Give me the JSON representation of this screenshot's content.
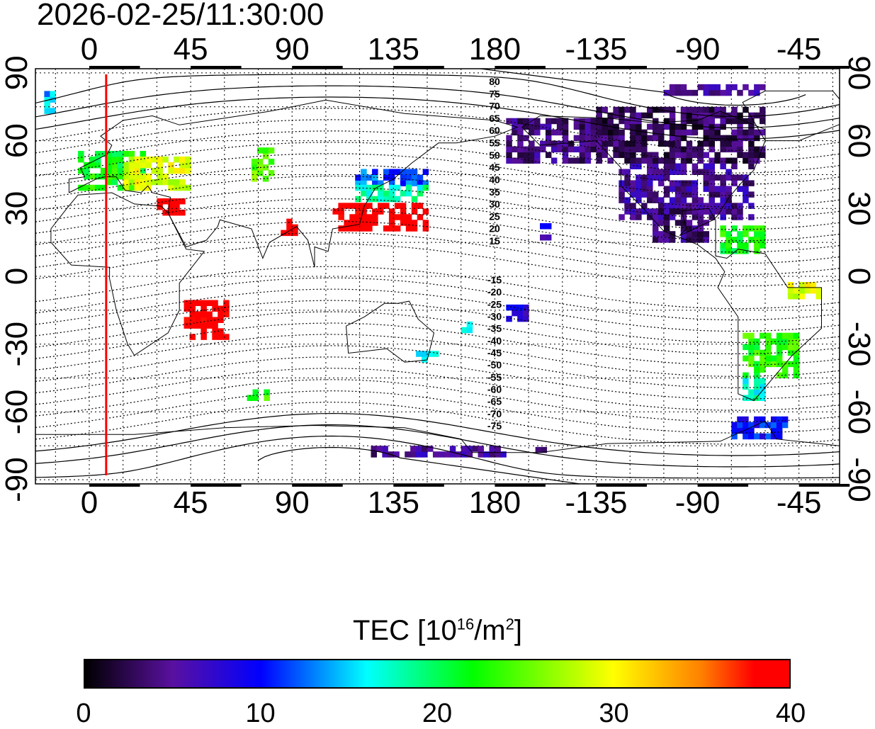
{
  "title": "2026-02-25/11:30:00",
  "axes": {
    "lon_ticks": [
      "0",
      "45",
      "90",
      "135",
      "180",
      "-135",
      "-90",
      "-45"
    ],
    "lat_ticks": [
      "90",
      "60",
      "30",
      "0",
      "-30",
      "-60",
      "-90"
    ]
  },
  "mag_lat_labels": [
    "80",
    "75",
    "70",
    "65",
    "60",
    "55",
    "50",
    "45",
    "40",
    "35",
    "30",
    "25",
    "20",
    "15",
    "-15",
    "-20",
    "-25",
    "-30",
    "-35",
    "-40",
    "-45",
    "-50",
    "-55",
    "-60",
    "-65",
    "-70",
    "-75"
  ],
  "terminator_lon": 7.5,
  "colorbar": {
    "label_prefix": "TEC  [10",
    "label_exp": "16",
    "label_mid": "/m",
    "label_exp2": "2",
    "label_suffix": "]",
    "ticks": [
      "0",
      "10",
      "20",
      "30",
      "40"
    ],
    "range": [
      0,
      40
    ],
    "stops": [
      [
        "0",
        "#000000"
      ],
      [
        "5",
        "#5a10a0"
      ],
      [
        "10",
        "#0000ff"
      ],
      [
        "16",
        "#00ffff"
      ],
      [
        "22",
        "#00ff00"
      ],
      [
        "30",
        "#ffff00"
      ],
      [
        "35",
        "#ff8000"
      ],
      [
        "38",
        "#ff0000"
      ],
      [
        "40",
        "#ff0000"
      ]
    ]
  },
  "tec_regions": [
    {
      "lon": [
        -5,
        25
      ],
      "lat": [
        38,
        55
      ],
      "tec": 22
    },
    {
      "lon": [
        15,
        45
      ],
      "lat": [
        38,
        52
      ],
      "tec": 29
    },
    {
      "lon": [
        30,
        42
      ],
      "lat": [
        27,
        34
      ],
      "tec": 40
    },
    {
      "lon": [
        72,
        80
      ],
      "lat": [
        42,
        55
      ],
      "tec": 25
    },
    {
      "lon": [
        118,
        150
      ],
      "lat": [
        40,
        47
      ],
      "tec": 12
    },
    {
      "lon": [
        118,
        150
      ],
      "lat": [
        33,
        40
      ],
      "tec": 18
    },
    {
      "lon": [
        108,
        150
      ],
      "lat": [
        20,
        32
      ],
      "tec": 40
    },
    {
      "lon": [
        85,
        92
      ],
      "lat": [
        18,
        24
      ],
      "tec": 40
    },
    {
      "lon": [
        42,
        62
      ],
      "lat": [
        -28,
        -12
      ],
      "tec": 40
    },
    {
      "lon": [
        145,
        155
      ],
      "lat": [
        -38,
        -34
      ],
      "tec": 16
    },
    {
      "lon": [
        70,
        78
      ],
      "lat": [
        -55,
        -50
      ],
      "tec": 23
    },
    {
      "lon": [
        -20,
        -15
      ],
      "lat": [
        72,
        80
      ],
      "tec": 14
    },
    {
      "lon": [
        235,
        295
      ],
      "lat": [
        25,
        50
      ],
      "tec": 5
    },
    {
      "lon": [
        225,
        300
      ],
      "lat": [
        50,
        75
      ],
      "tec": 3
    },
    {
      "lon": [
        250,
        275
      ],
      "lat": [
        15,
        28
      ],
      "tec": 4
    },
    {
      "lon": [
        280,
        300
      ],
      "lat": [
        10,
        22
      ],
      "tec": 22
    },
    {
      "lon": [
        310,
        325
      ],
      "lat": [
        -10,
        -3
      ],
      "tec": 29
    },
    {
      "lon": [
        290,
        315
      ],
      "lat": [
        -45,
        -25
      ],
      "tec": 23
    },
    {
      "lon": [
        290,
        300
      ],
      "lat": [
        -55,
        -45
      ],
      "tec": 17
    },
    {
      "lon": [
        285,
        310
      ],
      "lat": [
        -72,
        -62
      ],
      "tec": 10
    },
    {
      "lon": [
        125,
        185
      ],
      "lat": [
        -80,
        -75
      ],
      "tec": 5
    },
    {
      "lon": [
        198,
        205
      ],
      "lat": [
        -78,
        -76
      ],
      "tec": 5
    },
    {
      "lon": [
        200,
        205
      ],
      "lat": [
        16,
        22
      ],
      "tec": 8
    },
    {
      "lon": [
        185,
        195
      ],
      "lat": [
        -20,
        -14
      ],
      "tec": 8
    },
    {
      "lon": [
        165,
        170
      ],
      "lat": [
        -25,
        -20
      ],
      "tec": 15
    },
    {
      "lon": [
        185,
        230
      ],
      "lat": [
        50,
        70
      ],
      "tec": 4
    },
    {
      "lon": [
        255,
        300
      ],
      "lat": [
        80,
        85
      ],
      "tec": 5
    }
  ]
}
